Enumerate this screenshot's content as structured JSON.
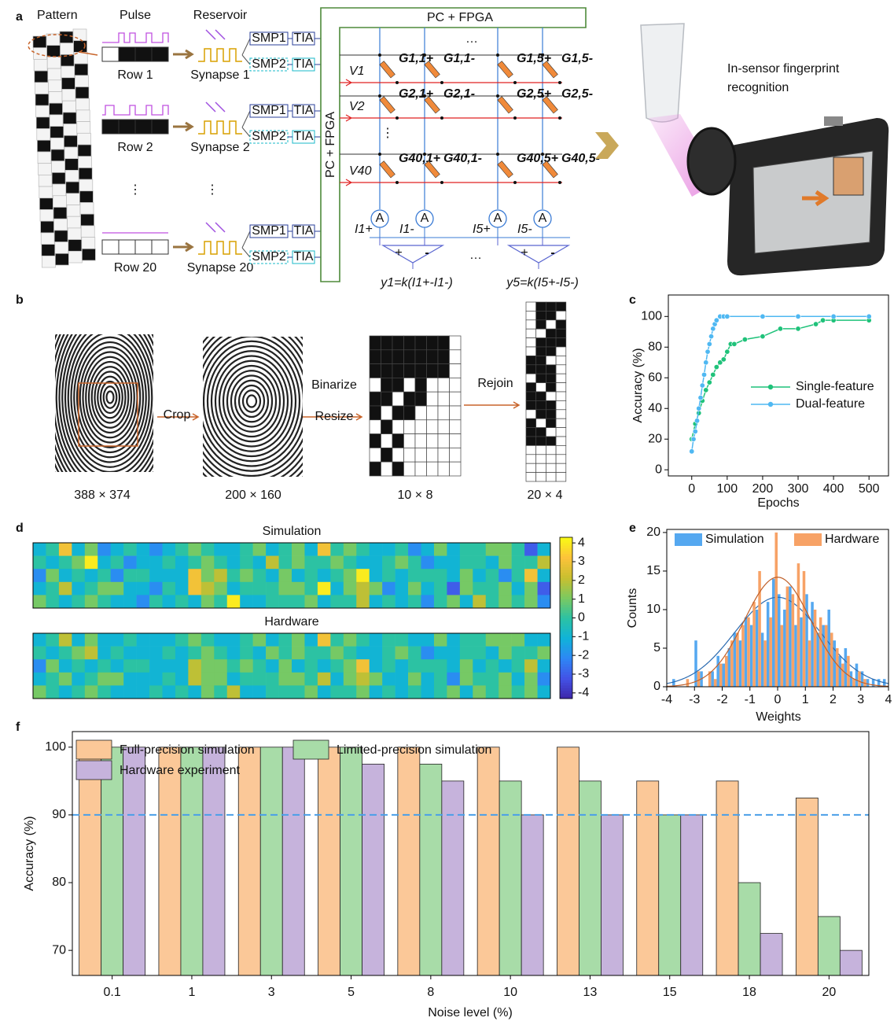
{
  "panel_labels": [
    "a",
    "b",
    "c",
    "d",
    "e",
    "f"
  ],
  "diagram": {
    "pattern": "Pattern",
    "pulse": "Pulse",
    "reservoir": "Reservoir",
    "rows": [
      "Row 1",
      "Row 2",
      "Row 20"
    ],
    "synapses": [
      "Synapse 1",
      "Synapse 2",
      "Synapse 20"
    ],
    "smp1": "SMP1",
    "smp2": "SMP2",
    "tia": "TIA",
    "controller": "PC + FPGA",
    "voltages": [
      "V1",
      "V2",
      "V40"
    ],
    "conductances": [
      [
        "G1,1+",
        "G1,1-",
        "G1,5+",
        "G1,5-"
      ],
      [
        "G2,1+",
        "G2,1-",
        "G2,5+",
        "G2,5-"
      ],
      [
        "G40,1+",
        "G40,1-",
        "G40,5+",
        "G40,5-"
      ]
    ],
    "currents": [
      "I1+",
      "I1-",
      "I5+",
      "I5-"
    ],
    "ammeter": "A",
    "outputs": [
      "y1=k(I1+-I1-)",
      "y5=k(I5+-I5-)"
    ],
    "signs": [
      "+",
      "-"
    ],
    "ellipsis_h": "…",
    "ellipsis_v": "⋮",
    "application": [
      "In-sensor fingerprint",
      "recognition"
    ]
  },
  "preprocessing": {
    "steps": [
      "Crop",
      "Binarize",
      "Resize",
      "Rejoin"
    ],
    "sizes": [
      "388 × 374",
      "200 × 160",
      "10 × 8",
      "20 × 4"
    ]
  },
  "chart_data": [
    {
      "type": "line",
      "ylabel": "Accuracy (%)",
      "xlabel": "Epochs",
      "xlim": [
        -66,
        555
      ],
      "ylim": [
        -4,
        114
      ],
      "xticks": [
        0,
        100,
        200,
        300,
        400,
        500
      ],
      "yticks": [
        0,
        20,
        40,
        60,
        80,
        100
      ],
      "series": [
        {
          "name": "Single-feature",
          "color": "#1fc27a",
          "x": [
            0,
            10,
            20,
            30,
            40,
            50,
            60,
            70,
            80,
            90,
            100,
            110,
            120,
            150,
            200,
            250,
            300,
            350,
            370,
            400,
            500
          ],
          "values": [
            20,
            30,
            37,
            45,
            52,
            57,
            62,
            67,
            70,
            72,
            77,
            82,
            82,
            85,
            87,
            92,
            92,
            95,
            97.5,
            97.5,
            97.5
          ]
        },
        {
          "name": "Dual-feature",
          "color": "#4fb8f2",
          "x": [
            0,
            5,
            10,
            15,
            20,
            25,
            30,
            35,
            40,
            45,
            50,
            55,
            60,
            65,
            70,
            80,
            90,
            100,
            200,
            300,
            400,
            500
          ],
          "values": [
            12,
            20,
            25,
            32,
            40,
            47,
            55,
            62,
            70,
            77,
            82,
            87,
            92,
            95,
            97.5,
            100,
            100,
            100,
            100,
            100,
            100,
            100
          ]
        }
      ]
    },
    {
      "type": "heatmap",
      "zlim": [
        -4.3,
        4.3
      ],
      "zticks": [
        -4,
        -3,
        -2,
        -1,
        0,
        1,
        2,
        3,
        4
      ],
      "colorscale": [
        "#3e26a8",
        "#4352e6",
        "#2e87f5",
        "#10b3d8",
        "#2cc2a3",
        "#7cc960",
        "#c9bf2f",
        "#fdc33a",
        "#f9fb15"
      ],
      "panels": [
        {
          "title": "Simulation",
          "z": [
            [
              -1,
              0,
              3,
              -1,
              1,
              -2,
              -1,
              0,
              -1,
              -2,
              -1,
              0,
              1,
              0,
              -1,
              -1,
              0,
              1,
              -1,
              0,
              1,
              -1,
              3,
              0,
              1,
              0,
              -1,
              -1,
              0,
              -2,
              -1,
              1,
              -1,
              0,
              0,
              1,
              1,
              0,
              -3,
              -1
            ],
            [
              0,
              -1,
              0,
              1,
              4,
              -1,
              0,
              -2,
              -1,
              -1,
              0,
              -1,
              0,
              1,
              0,
              -1,
              0,
              -1,
              2,
              0,
              1,
              0,
              0,
              1,
              0,
              -1,
              -1,
              0,
              1,
              0,
              -2,
              -1,
              -1,
              0,
              0,
              -1,
              1,
              0,
              0,
              2
            ],
            [
              -2,
              1,
              -1,
              0,
              -1,
              0,
              -2,
              0,
              0,
              -1,
              -1,
              -1,
              3,
              1,
              2,
              0,
              1,
              0,
              -1,
              1,
              -1,
              0,
              -1,
              0,
              1,
              4,
              -1,
              0,
              -1,
              0,
              0,
              0,
              -1,
              1,
              -1,
              0,
              -2,
              0,
              3,
              -1
            ],
            [
              -1,
              0,
              2,
              -1,
              0,
              1,
              1,
              -1,
              -1,
              -2,
              0,
              -1,
              3,
              2,
              1,
              -1,
              0,
              0,
              0,
              1,
              1,
              0,
              4,
              -1,
              1,
              2,
              1,
              -2,
              -1,
              1,
              -1,
              0,
              -3,
              1,
              0,
              0,
              1,
              -1,
              1,
              -3
            ],
            [
              1,
              0,
              -1,
              0,
              1,
              0,
              -1,
              -1,
              -2,
              0,
              -1,
              0,
              -1,
              1,
              0,
              4,
              -1,
              -1,
              0,
              0,
              0,
              1,
              -1,
              0,
              0,
              2,
              -1,
              0,
              -1,
              0,
              -2,
              0,
              1,
              -1,
              2,
              0,
              1,
              0,
              1,
              -2
            ]
          ]
        },
        {
          "title": "Hardware",
          "z": [
            [
              -1,
              0,
              2,
              -1,
              1,
              -1,
              -1,
              0,
              -1,
              -1,
              -1,
              0,
              1,
              0,
              -1,
              -1,
              0,
              1,
              -1,
              0,
              1,
              -1,
              3,
              0,
              1,
              0,
              -1,
              0,
              0,
              -1,
              -1,
              1,
              -1,
              0,
              0,
              1,
              1,
              1,
              -1,
              -1
            ],
            [
              0,
              -1,
              0,
              1,
              2,
              -1,
              0,
              -1,
              -1,
              -1,
              0,
              -1,
              0,
              1,
              0,
              -1,
              0,
              -1,
              1,
              0,
              1,
              0,
              0,
              1,
              0,
              -1,
              -1,
              0,
              1,
              0,
              -2,
              -1,
              -1,
              0,
              0,
              -1,
              1,
              0,
              0,
              1
            ],
            [
              -2,
              1,
              -1,
              0,
              -1,
              0,
              -1,
              0,
              0,
              -1,
              -1,
              -1,
              2,
              1,
              1,
              0,
              1,
              0,
              -1,
              1,
              -1,
              0,
              -1,
              0,
              1,
              3,
              -1,
              0,
              -1,
              0,
              0,
              0,
              -1,
              1,
              -1,
              0,
              -1,
              0,
              2,
              -1
            ],
            [
              -1,
              0,
              1,
              -1,
              0,
              1,
              1,
              -1,
              -1,
              -1,
              0,
              -1,
              2,
              1,
              1,
              -1,
              0,
              0,
              0,
              1,
              1,
              0,
              2,
              -1,
              1,
              2,
              1,
              -1,
              -1,
              1,
              -1,
              0,
              -2,
              1,
              0,
              0,
              1,
              -1,
              1,
              -2
            ],
            [
              1,
              0,
              -1,
              0,
              1,
              0,
              -1,
              -1,
              -1,
              0,
              -1,
              0,
              -1,
              1,
              0,
              2,
              -1,
              -1,
              0,
              0,
              0,
              1,
              -1,
              0,
              0,
              1,
              -1,
              0,
              -1,
              0,
              -1,
              0,
              1,
              -1,
              1,
              0,
              1,
              0,
              1,
              -1
            ]
          ]
        }
      ]
    },
    {
      "type": "histogram",
      "ylabel": "Counts",
      "xlabel": "Weights",
      "xlim": [
        -4,
        4
      ],
      "ylim": [
        0,
        20.4
      ],
      "xticks": [
        -4,
        -3,
        -2,
        -1,
        0,
        1,
        2,
        3,
        4
      ],
      "yticks": [
        0,
        5,
        10,
        15,
        20
      ],
      "bins": [
        -4,
        -3.8,
        -3.6,
        -3.4,
        -3.2,
        -3,
        -2.8,
        -2.6,
        -2.4,
        -2.2,
        -2,
        -1.8,
        -1.6,
        -1.4,
        -1.2,
        -1,
        -0.8,
        -0.6,
        -0.4,
        -0.2,
        0,
        0.2,
        0.4,
        0.6,
        0.8,
        1,
        1.2,
        1.4,
        1.6,
        1.8,
        2,
        2.2,
        2.4,
        2.6,
        2.8,
        3,
        3.2,
        3.4,
        3.6,
        3.8,
        4
      ],
      "series": [
        {
          "name": "Simulation",
          "color": "#55a8f0",
          "values": [
            0,
            1,
            0,
            0,
            0,
            6,
            2,
            0,
            2,
            4,
            3,
            5,
            7,
            6,
            9,
            8,
            10,
            7,
            11,
            14,
            12,
            10,
            13,
            8,
            9,
            12,
            11,
            7,
            8,
            10,
            6,
            4,
            5,
            2,
            3,
            2,
            1,
            1,
            1,
            1
          ],
          "fit": {
            "mean": 0,
            "sd": 1.55,
            "peak": 11.6
          }
        },
        {
          "name": "Hardware",
          "color": "#f7a266",
          "values": [
            0,
            0,
            0,
            1,
            0,
            2,
            0,
            2,
            1,
            3,
            4,
            6,
            7,
            8,
            9,
            11,
            15,
            6,
            9,
            20,
            8,
            13,
            12,
            16,
            15,
            6,
            10,
            9,
            8,
            7,
            5,
            3,
            4,
            1,
            2,
            1,
            0,
            0,
            0,
            0
          ],
          "fit": {
            "mean": 0,
            "sd": 1.2,
            "peak": 14.2
          }
        }
      ]
    },
    {
      "type": "bar",
      "ylabel": "Accuracy (%)",
      "xlabel": "Noise level (%)",
      "categories": [
        "0.1",
        "1",
        "3",
        "5",
        "8",
        "10",
        "13",
        "15",
        "18",
        "20"
      ],
      "ylim": [
        66.3,
        102.3
      ],
      "yticks": [
        70,
        80,
        90,
        100
      ],
      "reference_line": 90,
      "reference_color": "#4a9fe8",
      "series": [
        {
          "name": "Full-precision simulation",
          "color": "#fbc898",
          "values": [
            100,
            100,
            100,
            100,
            100,
            100,
            100,
            95,
            95,
            92.5
          ]
        },
        {
          "name": "Limited-precision simulation",
          "color": "#a8dca8",
          "values": [
            100,
            100,
            100,
            100,
            97.5,
            95,
            95,
            90,
            80,
            75
          ]
        },
        {
          "name": "Hardware experiment",
          "color": "#c6b3dc",
          "values": [
            100,
            100,
            100,
            97.5,
            95,
            90,
            90,
            90,
            72.5,
            70
          ]
        }
      ]
    }
  ]
}
